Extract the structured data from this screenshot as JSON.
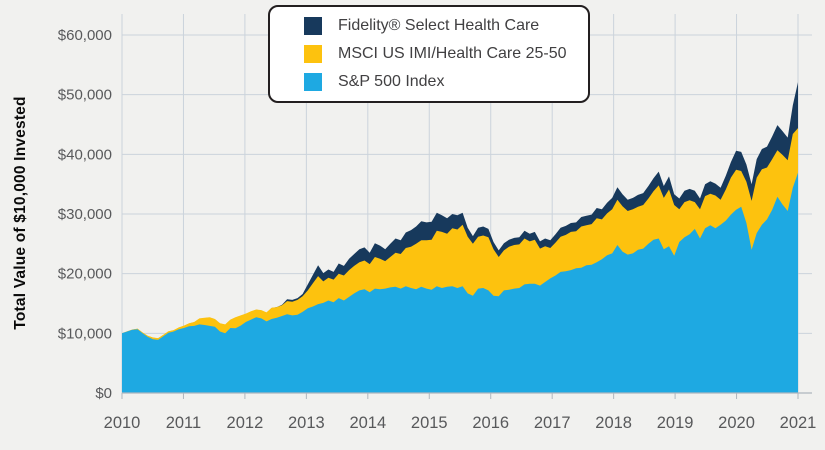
{
  "y_axis_title": "Total Value of $10,000 Invested",
  "colors": {
    "background": "#F1F1EF",
    "gridline": "#CBD3DB",
    "axis_line": "#AEB6BE",
    "axis_text": "#58595B",
    "legend_border": "#231F20",
    "legend_text": "#414042"
  },
  "chart_data": {
    "type": "area",
    "title": "",
    "xlabel": "",
    "ylabel": "Total Value of $10,000 Invested",
    "x_tick_labels": [
      "2010",
      "2011",
      "2012",
      "2013",
      "2014",
      "2015",
      "2016",
      "2017",
      "2018",
      "2019",
      "2020",
      "2021"
    ],
    "y_tick_labels": [
      "$0",
      "$10,000",
      "$20,000",
      "$30,000",
      "$40,000",
      "$50,000",
      "$60,000"
    ],
    "ylim": [
      0,
      60000
    ],
    "y_tick_step": 10000,
    "grid": true,
    "legend_position": "top-center",
    "x_unit": "monthly, Jan 2010 - Dec 2020",
    "series": [
      {
        "name": "Fidelity® Select Health Care",
        "color": "#17395C",
        "values": [
          10000,
          10300,
          10600,
          10750,
          10100,
          9550,
          9250,
          9150,
          9700,
          10300,
          10500,
          10950,
          11250,
          11650,
          11850,
          12450,
          12550,
          12650,
          12350,
          11650,
          11450,
          12250,
          12650,
          12950,
          13250,
          13650,
          13950,
          13850,
          13450,
          14250,
          14400,
          14800,
          15700,
          15600,
          15900,
          16600,
          18200,
          19800,
          21400,
          20100,
          20700,
          20300,
          21700,
          21300,
          22500,
          23300,
          24100,
          24400,
          23500,
          25100,
          24700,
          24100,
          25000,
          25900,
          25600,
          26900,
          27300,
          27900,
          28800,
          28600,
          28700,
          30200,
          29800,
          29300,
          30000,
          29800,
          30200,
          27700,
          26300,
          27700,
          27900,
          27500,
          25300,
          23900,
          25100,
          25700,
          26000,
          26100,
          27200,
          26700,
          27000,
          25400,
          25900,
          25600,
          26600,
          27700,
          28000,
          28500,
          28600,
          29500,
          29700,
          29900,
          31000,
          30800,
          31900,
          32700,
          34500,
          33300,
          32400,
          32700,
          33200,
          33500,
          34700,
          36000,
          37100,
          34700,
          36300,
          33300,
          32600,
          33900,
          34200,
          33900,
          32600,
          35000,
          35500,
          35100,
          34400,
          36400,
          38700,
          40600,
          40400,
          38300,
          35000,
          39200,
          40900,
          41300,
          43000,
          44900,
          43900,
          42800,
          48200,
          52100
        ]
      },
      {
        "name": "MSCI US IMI/Health Care 25-50",
        "color": "#FDC20E",
        "values": [
          10000,
          10350,
          10650,
          10800,
          10150,
          9600,
          9300,
          9200,
          9750,
          10350,
          10550,
          11000,
          11300,
          11700,
          11900,
          12500,
          12600,
          12700,
          12400,
          11700,
          11500,
          12300,
          12700,
          13000,
          13300,
          13700,
          14000,
          13900,
          13500,
          14300,
          14400,
          14700,
          15400,
          15300,
          15600,
          16200,
          17200,
          18400,
          19600,
          18700,
          19300,
          19000,
          20000,
          19700,
          20600,
          21300,
          21900,
          22200,
          21600,
          22800,
          22500,
          22100,
          22800,
          23500,
          23300,
          24300,
          24500,
          25000,
          25600,
          25600,
          25700,
          27200,
          27000,
          26700,
          27600,
          27400,
          28200,
          26200,
          25000,
          26200,
          26400,
          26100,
          24100,
          22800,
          23900,
          24500,
          24800,
          24900,
          25900,
          25400,
          25700,
          24200,
          24600,
          24300,
          25200,
          26200,
          26500,
          27000,
          27100,
          27900,
          28100,
          28300,
          29300,
          29100,
          30100,
          30800,
          32400,
          31300,
          30500,
          30800,
          31200,
          31500,
          32600,
          33800,
          34800,
          32700,
          34100,
          31500,
          30800,
          32000,
          32300,
          32000,
          30800,
          33000,
          33400,
          33100,
          32400,
          34100,
          36100,
          37400,
          37200,
          35400,
          32200,
          36100,
          37500,
          37800,
          39200,
          40700,
          39900,
          39000,
          43400,
          44400
        ]
      },
      {
        "name": "S&P 500 Index",
        "color": "#1EA9E2",
        "values": [
          10000,
          10300,
          10600,
          10700,
          10000,
          9400,
          9000,
          8900,
          9500,
          10100,
          10300,
          10700,
          10900,
          11200,
          11250,
          11500,
          11400,
          11250,
          11100,
          10300,
          10000,
          10900,
          10850,
          11300,
          11900,
          12300,
          12700,
          12500,
          12000,
          12400,
          12600,
          12900,
          13200,
          13000,
          13100,
          13600,
          14200,
          14500,
          14900,
          15100,
          15500,
          15200,
          15900,
          15500,
          16100,
          16700,
          17200,
          17400,
          16900,
          17500,
          17400,
          17500,
          17700,
          17800,
          17500,
          17900,
          17600,
          17400,
          17800,
          17500,
          17300,
          17900,
          17600,
          17800,
          17900,
          17600,
          17900,
          16700,
          16300,
          17500,
          17600,
          17200,
          16300,
          16200,
          17200,
          17300,
          17500,
          17600,
          18200,
          18300,
          18300,
          18000,
          18600,
          19200,
          19700,
          20300,
          20400,
          20600,
          20900,
          21000,
          21400,
          21500,
          21900,
          22400,
          23100,
          23400,
          24800,
          23700,
          23200,
          23400,
          24000,
          24200,
          25000,
          25700,
          25900,
          24100,
          24600,
          23000,
          25300,
          26100,
          26600,
          27500,
          25900,
          27600,
          28100,
          27600,
          28200,
          28900,
          29900,
          30700,
          31200,
          28500,
          24000,
          26800,
          28200,
          29100,
          30700,
          32900,
          31600,
          30500,
          34400,
          36900
        ]
      }
    ]
  }
}
